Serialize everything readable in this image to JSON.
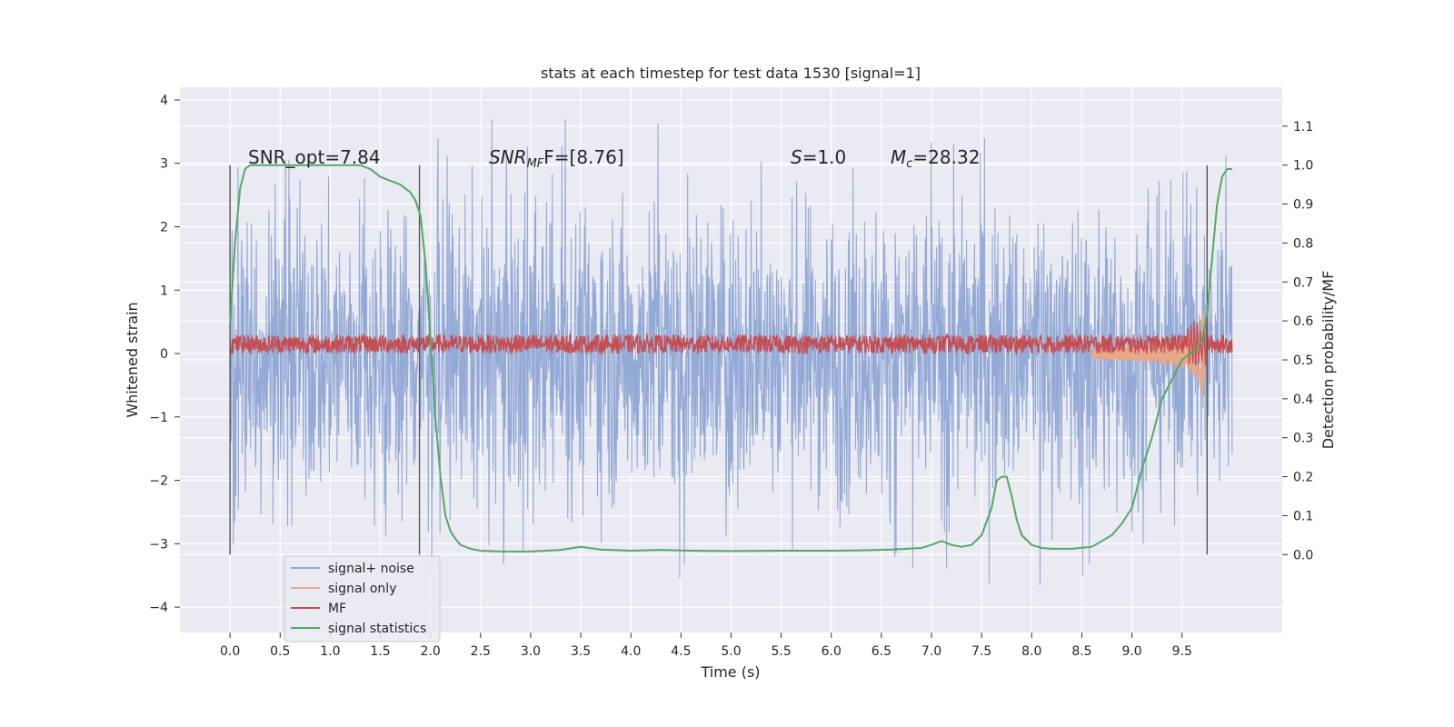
{
  "chart_data": {
    "type": "line",
    "title": "stats at each timestep for test data 1530 [signal=1]",
    "xlabel": "Time (s)",
    "ylabel": "Whitened strain",
    "ylabel_right": "Detection probability/MF",
    "xlim": [
      -0.5,
      10.5
    ],
    "ylim": [
      -4.4,
      4.2
    ],
    "ylim_right": [
      -0.2,
      1.2
    ],
    "x_ticks": [
      "0.0",
      "0.5",
      "1.0",
      "1.5",
      "2.0",
      "2.5",
      "3.0",
      "3.5",
      "4.0",
      "4.5",
      "5.0",
      "5.5",
      "6.0",
      "6.5",
      "7.0",
      "7.5",
      "8.0",
      "8.5",
      "9.0",
      "9.5"
    ],
    "y_ticks": [
      "−4",
      "−3",
      "−2",
      "−1",
      "0",
      "1",
      "2",
      "3",
      "4"
    ],
    "y_ticks_right": [
      "0.0",
      "0.1",
      "0.2",
      "0.3",
      "0.4",
      "0.5",
      "0.6",
      "0.7",
      "0.8",
      "0.9",
      "1.0",
      "1.1"
    ],
    "grid": true,
    "legend_position": "lower-left",
    "annotations": {
      "snr_opt": "SNR_opt=7.84",
      "snr_mf_label": "SNR",
      "snr_mf_sub": "MF",
      "snr_mf_value": "F=[8.76]",
      "s_label": "S",
      "s_value": "=1.0",
      "mc_label": "M",
      "mc_sub": "c",
      "mc_value": "=28.32"
    },
    "vertical_markers": [
      0.0,
      1.89,
      9.75
    ],
    "series": [
      {
        "name": "signal+ noise",
        "color": "#8fa6d4",
        "envelope": [
          -2.5,
          2.5
        ],
        "spikes_max": 3.8,
        "spikes_min": -4.0
      },
      {
        "name": "signal only",
        "color": "#e8a88a",
        "chirp_end_time": 9.73,
        "chirp_peak_amplitude": 1.05
      },
      {
        "name": "MF",
        "color": "#c44e52",
        "mean": 0.15,
        "amplitude": 0.15
      },
      {
        "name": "signal statistics",
        "color": "#55a868",
        "axis": "right",
        "x": [
          0.0,
          0.05,
          0.1,
          0.15,
          0.2,
          0.3,
          0.5,
          0.8,
          1.0,
          1.3,
          1.4,
          1.5,
          1.6,
          1.7,
          1.75,
          1.8,
          1.85,
          1.9,
          1.95,
          2.0,
          2.05,
          2.1,
          2.15,
          2.2,
          2.25,
          2.3,
          2.4,
          2.5,
          2.7,
          3.0,
          3.3,
          3.5,
          3.7,
          4.0,
          4.3,
          4.6,
          5.0,
          5.5,
          6.0,
          6.3,
          6.6,
          6.9,
          7.0,
          7.1,
          7.2,
          7.3,
          7.4,
          7.5,
          7.6,
          7.65,
          7.7,
          7.75,
          7.8,
          7.85,
          7.9,
          8.0,
          8.1,
          8.2,
          8.4,
          8.6,
          8.8,
          8.9,
          9.0,
          9.1,
          9.2,
          9.3,
          9.4,
          9.5,
          9.6,
          9.65,
          9.7,
          9.75,
          9.8,
          9.85,
          9.9,
          9.95,
          10.0
        ],
        "y": [
          0.59,
          0.8,
          0.94,
          0.99,
          1.0,
          1.0,
          1.0,
          1.0,
          1.0,
          1.0,
          0.99,
          0.97,
          0.96,
          0.95,
          0.94,
          0.93,
          0.91,
          0.87,
          0.75,
          0.55,
          0.35,
          0.2,
          0.1,
          0.06,
          0.04,
          0.025,
          0.015,
          0.01,
          0.008,
          0.008,
          0.012,
          0.02,
          0.013,
          0.01,
          0.012,
          0.01,
          0.009,
          0.01,
          0.01,
          0.011,
          0.013,
          0.017,
          0.025,
          0.035,
          0.025,
          0.02,
          0.025,
          0.05,
          0.12,
          0.19,
          0.2,
          0.2,
          0.15,
          0.09,
          0.05,
          0.025,
          0.017,
          0.015,
          0.015,
          0.02,
          0.05,
          0.08,
          0.12,
          0.22,
          0.3,
          0.4,
          0.45,
          0.5,
          0.52,
          0.53,
          0.55,
          0.62,
          0.76,
          0.9,
          0.97,
          0.99,
          0.99
        ]
      }
    ]
  }
}
